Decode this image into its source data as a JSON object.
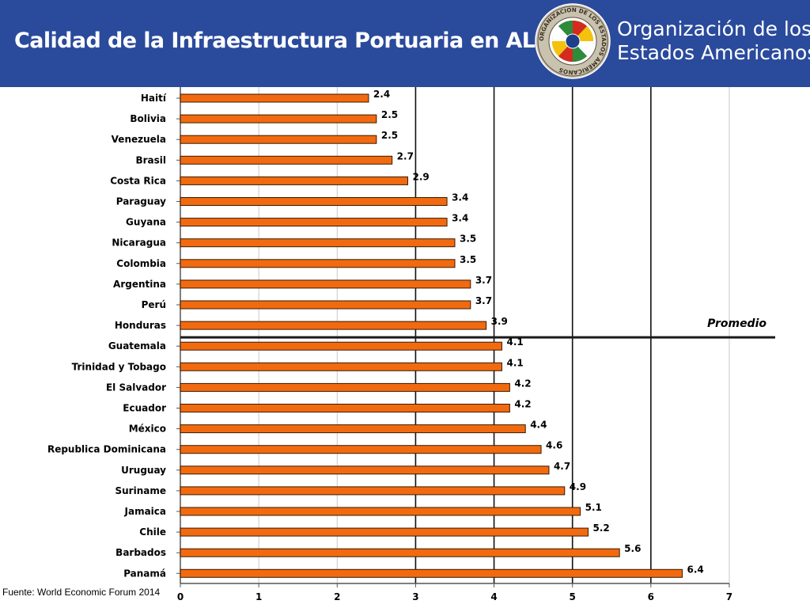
{
  "header": {
    "title": "Calidad de la Infraestructura Portuaria en ALC",
    "org_line1": "Organización de los",
    "org_line2": "Estados Americanos",
    "seal_text": "ORGANIZACION DE LOS ESTADOS AMERICANOS",
    "background_color": "#2a4a9c"
  },
  "footer": {
    "source": "Fuente: World Economic Forum 2014"
  },
  "chart_data": {
    "type": "bar",
    "orientation": "horizontal",
    "categories": [
      "Haití",
      "Bolivia",
      "Venezuela",
      "Brasil",
      "Costa Rica",
      "Paraguay",
      "Guyana",
      "Nicaragua",
      "Colombia",
      "Argentina",
      "Perú",
      "Honduras",
      "Guatemala",
      "Trinidad y Tobago",
      "El Salvador",
      "Ecuador",
      "México",
      "Republica Dominicana",
      "Uruguay",
      "Suriname",
      "Jamaica",
      "Chile",
      "Barbados",
      "Panamá"
    ],
    "values": [
      2.4,
      2.5,
      2.5,
      2.7,
      2.9,
      3.4,
      3.4,
      3.5,
      3.5,
      3.7,
      3.7,
      3.9,
      4.1,
      4.1,
      4.2,
      4.2,
      4.4,
      4.6,
      4.7,
      4.9,
      5.1,
      5.2,
      5.6,
      6.4
    ],
    "value_labels": [
      "2.4",
      "2.5",
      "2.5",
      "2.7",
      "2.9",
      "3.4",
      "3.4",
      "3.5",
      "3.5",
      "3.7",
      "3.7",
      "3.9",
      "4.1",
      "4.1",
      "4.2",
      "4.2",
      "4.4",
      "4.6",
      "4.7",
      "4.9",
      "5.1",
      "5.2",
      "5.6",
      "6.4"
    ],
    "xlim": [
      0,
      7
    ],
    "xticks": [
      "0",
      "1",
      "2",
      "3",
      "4",
      "5",
      "6",
      "7"
    ],
    "grid": "vertical",
    "bar_color": "#f26a10",
    "bar_edge_color": "#3a1a00",
    "average_line": {
      "label": "Promedio",
      "between_categories": [
        "Honduras",
        "Guatemala"
      ]
    }
  }
}
